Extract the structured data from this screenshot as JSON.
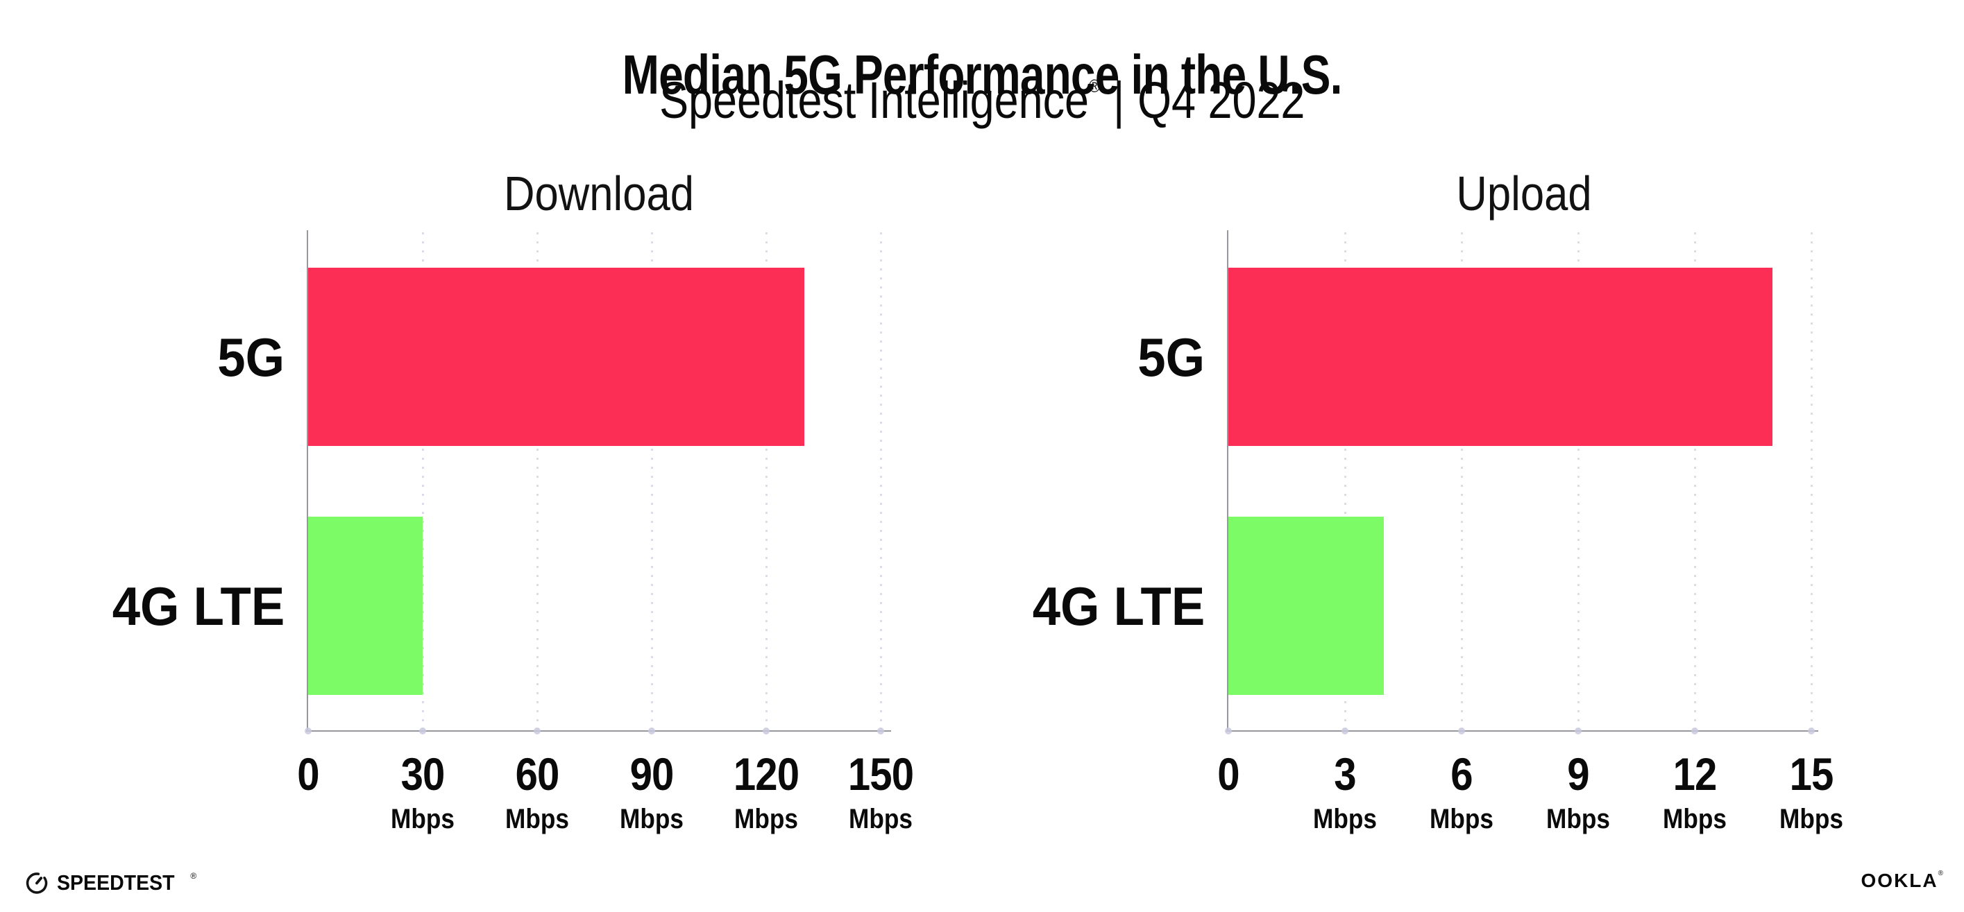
{
  "header": {
    "title": "Median 5G Performance in the U.S.",
    "subtitle_brand": "Speedtest Intelligence",
    "subtitle_reg": "®",
    "subtitle_sep": "|",
    "subtitle_period": "Q4 2022"
  },
  "chart_data": {
    "type": "bar",
    "orientation": "horizontal",
    "title": "Median 5G Performance in the U.S.",
    "subtitle": "Speedtest Intelligence® | Q4 2022",
    "categories": [
      "5G",
      "4G LTE"
    ],
    "series_colors": {
      "5G": "#fc2e56",
      "4G LTE": "#7dfb66"
    },
    "grid": "vertical-dotted",
    "legend": "none",
    "charts": [
      {
        "title": "Download",
        "values": [
          130,
          30
        ],
        "xlim": [
          0,
          150
        ],
        "xticks": [
          0,
          30,
          60,
          90,
          120,
          150
        ],
        "tick_unit": "Mbps"
      },
      {
        "title": "Upload",
        "values": [
          14,
          4
        ],
        "xlim": [
          0,
          15
        ],
        "xticks": [
          0,
          3,
          6,
          9,
          12,
          15
        ],
        "tick_unit": "Mbps"
      }
    ]
  },
  "colors": {
    "bar_5g": "#fc2e56",
    "bar_4g_lte": "#7dfb66",
    "axis_line": "#97979f",
    "grid_dot": "#dcdce8",
    "tick_dot": "#c9c9de",
    "text": "#0a0a0a"
  },
  "footer": {
    "speedtest_label": "SPEEDTEST",
    "speedtest_mark": "®",
    "ookla_label": "OOKLA",
    "ookla_mark": "®"
  }
}
